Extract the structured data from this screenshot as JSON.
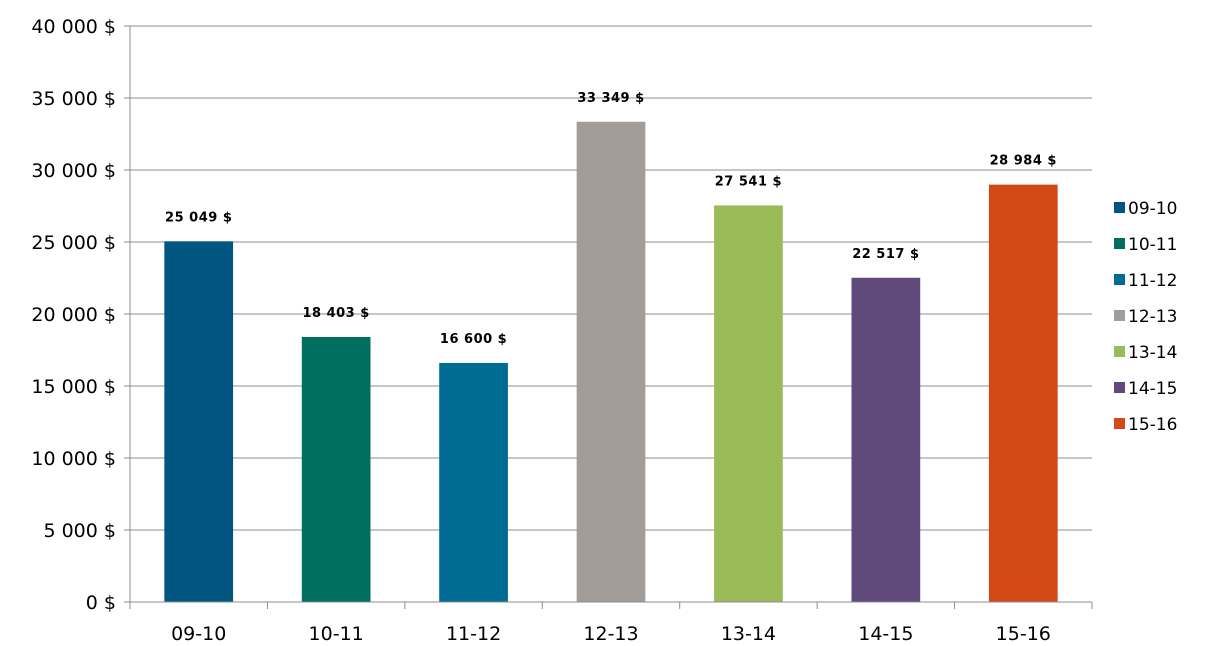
{
  "chart_data": {
    "type": "bar",
    "title": "",
    "xlabel": "",
    "ylabel": "",
    "categories": [
      "09-10",
      "10-11",
      "11-12",
      "12-13",
      "13-14",
      "14-15",
      "15-16"
    ],
    "values": [
      25049,
      18403,
      16600,
      33349,
      27541,
      22517,
      28984
    ],
    "data_labels": [
      "25 049 $",
      "18 403 $",
      "16 600 $",
      "33 349 $",
      "27 541 $",
      "22 517 $",
      "28 984 $"
    ],
    "colors": [
      "#005581",
      "#006f62",
      "#006b93",
      "#a29d99",
      "#9bbb59",
      "#604a7b",
      "#d34817"
    ],
    "ylim": [
      0,
      40000
    ],
    "yticks": [
      0,
      5000,
      10000,
      15000,
      20000,
      25000,
      30000,
      35000,
      40000
    ],
    "ytick_labels": [
      "0 $",
      "5 000 $",
      "10 000 $",
      "15 000 $",
      "20 000 $",
      "25 000 $",
      "30 000 $",
      "35 000 $",
      "40 000 $"
    ],
    "grid": true,
    "legend": {
      "position": "right",
      "entries": [
        "09-10",
        "10-11",
        "11-12",
        "12-13",
        "13-14",
        "14-15",
        "15-16"
      ]
    }
  }
}
